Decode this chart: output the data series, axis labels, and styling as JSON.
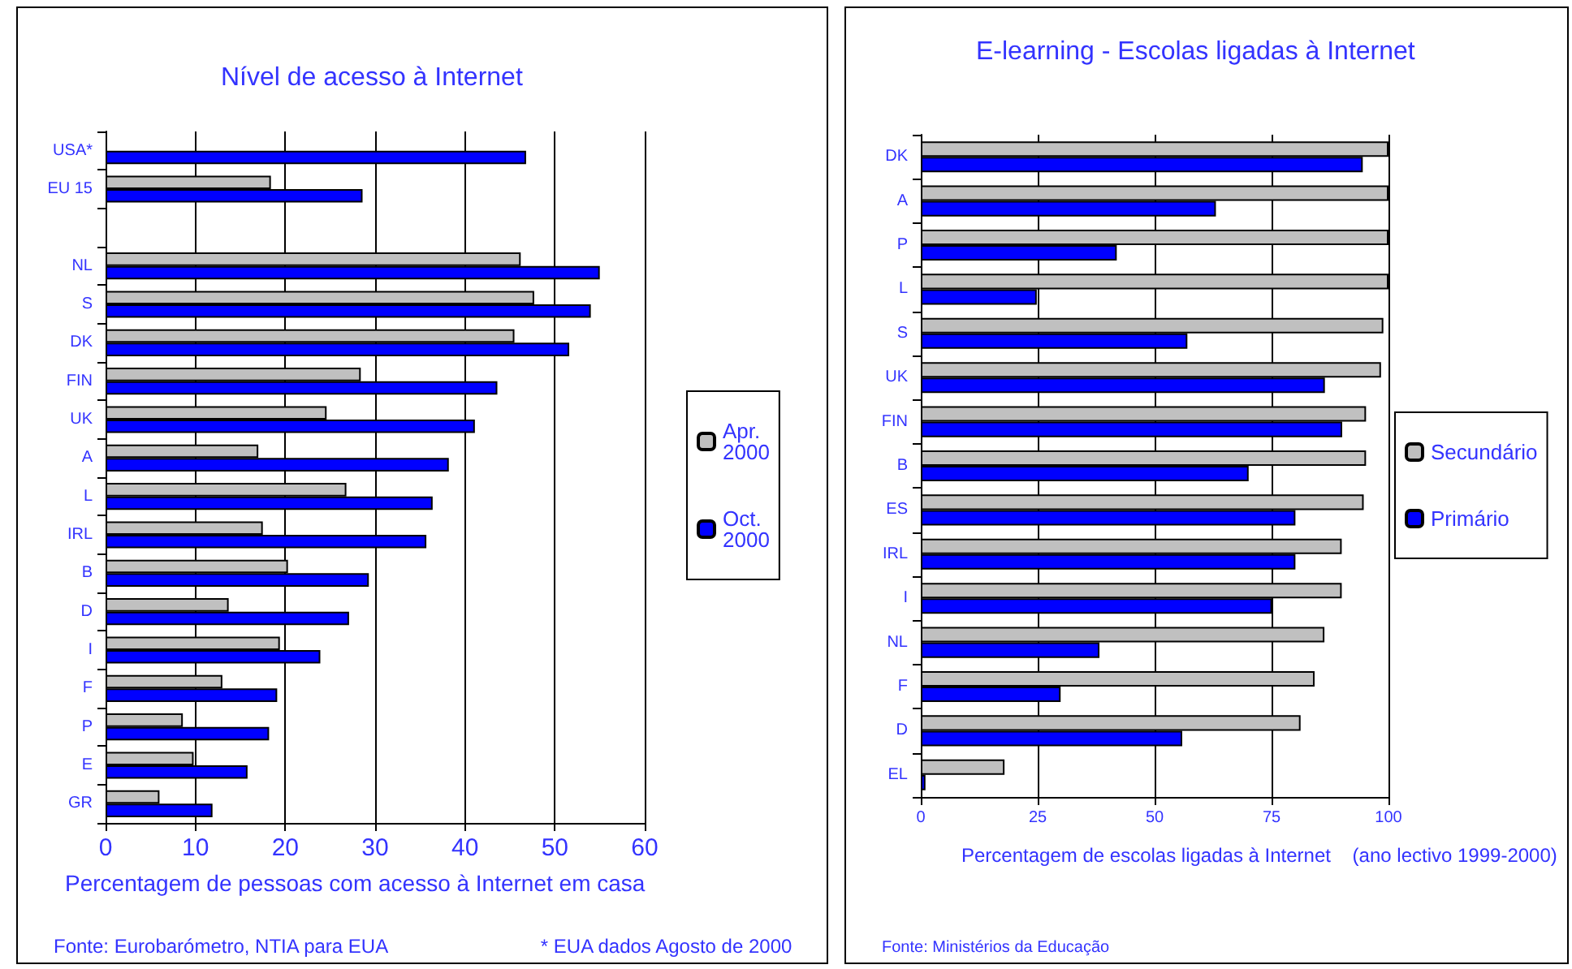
{
  "chart_data": [
    {
      "type": "bar",
      "orientation": "horizontal",
      "title": "Nível de acesso à Internet",
      "xlabel": "Percentagem de pessoas com acesso à Internet em casa",
      "categories": [
        "USA*",
        "EU 15",
        null,
        "NL",
        "S",
        "DK",
        "FIN",
        "UK",
        "A",
        "L",
        "IRL",
        "B",
        "D",
        "I",
        "F",
        "P",
        "E",
        "GR"
      ],
      "series": [
        {
          "name": "Apr. 2000",
          "color": "#c0c0c0",
          "values": [
            null,
            18.4,
            null,
            46.2,
            47.7,
            45.5,
            28.4,
            24.6,
            17.0,
            26.8,
            17.5,
            20.3,
            13.7,
            19.4,
            13.0,
            8.6,
            9.8,
            6.0
          ]
        },
        {
          "name": "Oct. 2000",
          "color": "#0000ff",
          "values": [
            46.8,
            28.6,
            null,
            55.0,
            54.0,
            51.6,
            43.6,
            41.1,
            38.2,
            36.4,
            35.7,
            29.3,
            27.1,
            23.9,
            19.1,
            18.2,
            15.8,
            11.9
          ]
        }
      ],
      "xlim": [
        0,
        60
      ],
      "xticks": [
        0,
        10,
        20,
        30,
        40,
        50,
        60
      ],
      "grid": "x",
      "legend": "right",
      "annotations": [
        "Fonte: Eurobarómetro, NTIA para EUA",
        "* EUA dados Agosto de 2000"
      ]
    },
    {
      "type": "bar",
      "orientation": "horizontal",
      "title": "E-learning - Escolas ligadas à Internet",
      "xlabel": "Percentagem de escolas ligadas à Internet    (ano lectivo 1999-2000)",
      "categories": [
        "DK",
        "A",
        "P",
        "L",
        "S",
        "UK",
        "FIN",
        "B",
        "ES",
        "IRL",
        "I",
        "NL",
        "F",
        "D",
        "EL"
      ],
      "series": [
        {
          "name": "Secundário",
          "color": "#c0c0c0",
          "values": [
            100,
            100,
            100,
            100,
            98.9,
            98.4,
            95.2,
            95.2,
            94.7,
            90.0,
            90.0,
            86.3,
            84.2,
            81.2,
            17.9
          ]
        },
        {
          "name": "Primário",
          "color": "#0000ff",
          "values": [
            94.5,
            63.1,
            41.9,
            24.8,
            57.0,
            86.4,
            90.1,
            70.1,
            80.1,
            80.1,
            75.1,
            38.2,
            29.9,
            55.9,
            1.0
          ]
        }
      ],
      "xlim": [
        0,
        100
      ],
      "xticks": [
        0,
        25,
        50,
        75,
        100
      ],
      "grid": "x",
      "legend": "right",
      "annotations": [
        "Fonte: Ministérios da Educação"
      ]
    }
  ]
}
